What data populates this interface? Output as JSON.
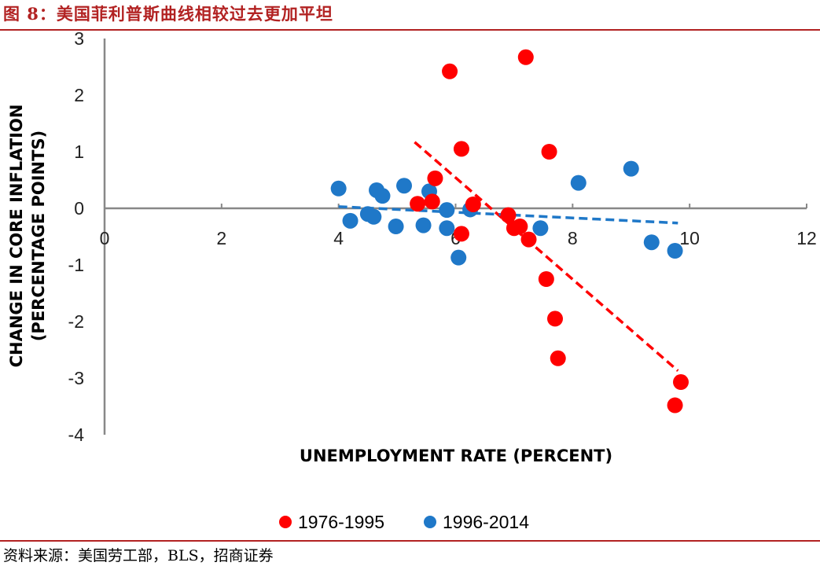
{
  "figure": {
    "title": "图 8：美国菲利普斯曲线相较过去更加平坦",
    "source": "资料来源：美国劳工部，BLS，招商证券"
  },
  "chart_data": {
    "type": "scatter",
    "xlabel": "UNEMPLOYMENT RATE (PERCENT)",
    "ylabel_line1": "CHANGE IN CORE INFLATION",
    "ylabel_line2": "(PERCENTAGE POINTS)",
    "xlim": [
      0,
      12
    ],
    "ylim": [
      -4,
      3
    ],
    "xticks": [
      0,
      2,
      4,
      6,
      8,
      10,
      12
    ],
    "yticks": [
      3,
      2,
      1,
      0,
      -1,
      -2,
      -3,
      -4
    ],
    "legend_position": "bottom",
    "series": [
      {
        "name": "1976-1995",
        "color": "#ff0000",
        "points": [
          [
            5.9,
            2.42
          ],
          [
            7.2,
            2.67
          ],
          [
            6.1,
            1.05
          ],
          [
            7.6,
            1.0
          ],
          [
            5.65,
            0.53
          ],
          [
            5.35,
            0.08
          ],
          [
            5.6,
            0.12
          ],
          [
            6.3,
            0.07
          ],
          [
            6.1,
            -0.45
          ],
          [
            6.9,
            -0.12
          ],
          [
            7.0,
            -0.35
          ],
          [
            7.1,
            -0.32
          ],
          [
            7.25,
            -0.55
          ],
          [
            7.55,
            -1.25
          ],
          [
            7.7,
            -1.95
          ],
          [
            7.75,
            -2.65
          ],
          [
            9.85,
            -3.07
          ],
          [
            9.75,
            -3.48
          ]
        ],
        "trend": [
          [
            5.3,
            1.17
          ],
          [
            9.8,
            -2.87
          ]
        ]
      },
      {
        "name": "1996-2014",
        "color": "#1f78c8",
        "points": [
          [
            4.0,
            0.35
          ],
          [
            4.2,
            -0.22
          ],
          [
            4.5,
            -0.1
          ],
          [
            4.6,
            -0.15
          ],
          [
            4.65,
            0.32
          ],
          [
            4.75,
            0.22
          ],
          [
            4.98,
            -0.32
          ],
          [
            5.12,
            0.4
          ],
          [
            5.45,
            -0.3
          ],
          [
            5.55,
            0.3
          ],
          [
            5.85,
            -0.03
          ],
          [
            5.85,
            -0.35
          ],
          [
            6.05,
            -0.87
          ],
          [
            6.25,
            -0.02
          ],
          [
            7.45,
            -0.35
          ],
          [
            8.1,
            0.45
          ],
          [
            9.0,
            0.7
          ],
          [
            9.35,
            -0.6
          ],
          [
            9.75,
            -0.75
          ]
        ],
        "trend": [
          [
            4.0,
            0.03
          ],
          [
            9.8,
            -0.26
          ]
        ]
      }
    ]
  }
}
